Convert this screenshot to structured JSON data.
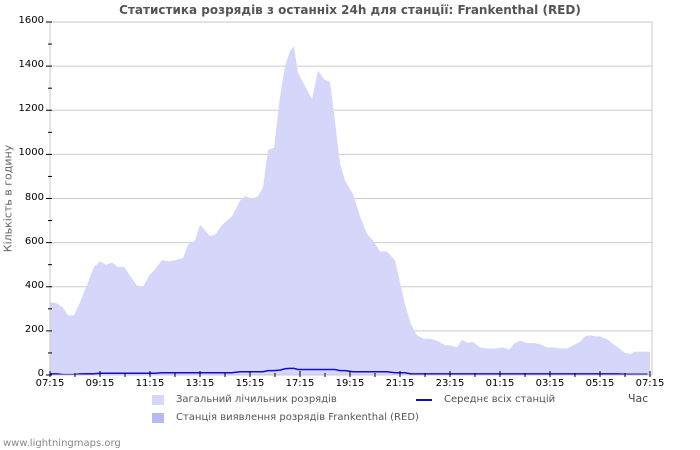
{
  "header": {
    "title": "Статистика розрядів з останніх 24h для станції: Frankenthal (RED)"
  },
  "footer": {
    "site": "www.lightningmaps.org"
  },
  "colors": {
    "total_area": "#d6d6fb",
    "station_area": "#b8b8f6",
    "average_line": "#1010cc",
    "grid": "#cccccc",
    "frame": "#c8c8c8"
  },
  "chart_data": {
    "type": "area",
    "title": "Статистика розрядів з останніх 24h для станції: Frankenthal (RED)",
    "xlabel": "Час",
    "ylabel": "Кількість в годину",
    "ylim": [
      0,
      1600
    ],
    "yticks": [
      0,
      200,
      400,
      600,
      800,
      1000,
      1200,
      1400,
      1600
    ],
    "xticks": [
      "07:15",
      "09:15",
      "11:15",
      "13:15",
      "15:15",
      "17:15",
      "19:15",
      "21:15",
      "23:15",
      "01:15",
      "03:15",
      "05:15",
      "07:15"
    ],
    "grid": true,
    "legend_position": "bottom",
    "legend": [
      {
        "label": "Загальний лічильник розрядів",
        "kind": "area"
      },
      {
        "label": "Станція виявлення розрядів Frankenthal (RED)",
        "kind": "area"
      },
      {
        "label": "Середнє всіх станцій",
        "kind": "line"
      }
    ],
    "x_hours_from_start": [
      0,
      0.28,
      0.52,
      0.72,
      0.96,
      1.2,
      1.52,
      1.76,
      2.0,
      2.24,
      2.48,
      2.72,
      2.96,
      3.2,
      3.48,
      3.72,
      3.96,
      4.2,
      4.48,
      4.8,
      5.12,
      5.32,
      5.52,
      5.8,
      6.0,
      6.2,
      6.4,
      6.6,
      6.88,
      7.28,
      7.6,
      7.8,
      8.08,
      8.32,
      8.52,
      8.72,
      8.96,
      9.2,
      9.4,
      9.6,
      9.76,
      9.92,
      10.2,
      10.48,
      10.72,
      10.96,
      11.2,
      11.4,
      11.6,
      11.8,
      12.12,
      12.4,
      12.68,
      12.92,
      13.2,
      13.48,
      13.8,
      14.0,
      14.2,
      14.44,
      14.68,
      14.92,
      15.2,
      15.48,
      15.8,
      16.0,
      16.28,
      16.48,
      16.72,
      16.92,
      17.2,
      17.48,
      17.8,
      18.12,
      18.36,
      18.6,
      18.8,
      19.08,
      19.32,
      19.6,
      19.88,
      20.12,
      20.4,
      20.68,
      20.92,
      21.2,
      21.4,
      21.6,
      21.8,
      22.0,
      22.32,
      22.52,
      22.72,
      23.0,
      23.2,
      23.4,
      23.6,
      23.8
    ],
    "series": [
      {
        "name": "Загальний лічильник розрядів",
        "values": [
          330,
          325,
          305,
          270,
          270,
          330,
          420,
          490,
          515,
          500,
          510,
          490,
          490,
          450,
          405,
          400,
          450,
          480,
          520,
          515,
          525,
          530,
          590,
          610,
          680,
          655,
          630,
          635,
          680,
          720,
          790,
          810,
          800,
          810,
          850,
          1020,
          1030,
          1260,
          1400,
          1470,
          1490,
          1370,
          1310,
          1250,
          1380,
          1340,
          1330,
          1150,
          960,
          880,
          820,
          720,
          640,
          610,
          560,
          560,
          520,
          420,
          320,
          230,
          180,
          165,
          165,
          155,
          135,
          135,
          125,
          160,
          145,
          150,
          125,
          120,
          120,
          125,
          115,
          145,
          155,
          145,
          145,
          140,
          125,
          125,
          120,
          120,
          135,
          150,
          175,
          180,
          175,
          175,
          160,
          140,
          125,
          100,
          95,
          105,
          105,
          105
        ]
      },
      {
        "name": "Станція виявлення розрядів Frankenthal (RED)",
        "values": [
          0,
          0,
          0,
          0,
          0,
          0,
          0,
          0,
          0,
          0,
          0,
          0,
          0,
          0,
          0,
          0,
          0,
          0,
          0,
          0,
          0,
          0,
          0,
          0,
          0,
          0,
          0,
          0,
          0,
          0,
          0,
          0,
          0,
          0,
          0,
          0,
          0,
          0,
          0,
          0,
          0,
          0,
          0,
          0,
          0,
          0,
          0,
          0,
          0,
          0,
          0,
          0,
          0,
          0,
          0,
          0,
          0,
          0,
          0,
          0,
          0,
          0,
          0,
          0,
          0,
          0,
          0,
          0,
          0,
          0,
          0,
          0,
          0,
          0,
          0,
          0,
          0,
          0,
          0,
          0,
          0,
          0,
          0,
          0,
          0,
          0,
          0,
          0,
          0,
          0,
          0,
          0,
          0,
          0,
          0,
          0,
          0,
          0
        ]
      },
      {
        "name": "Середнє всіх станцій",
        "values": [
          5,
          5,
          2,
          2,
          2,
          5,
          6,
          6,
          8,
          8,
          8,
          8,
          8,
          8,
          8,
          8,
          8,
          8,
          10,
          10,
          10,
          10,
          10,
          10,
          10,
          10,
          10,
          10,
          10,
          10,
          15,
          15,
          15,
          15,
          15,
          20,
          20,
          22,
          28,
          30,
          30,
          25,
          25,
          25,
          25,
          25,
          25,
          25,
          20,
          20,
          15,
          15,
          15,
          15,
          15,
          15,
          10,
          10,
          10,
          5,
          5,
          5,
          5,
          5,
          5,
          5,
          5,
          5,
          5,
          5,
          5,
          5,
          5,
          5,
          5,
          5,
          5,
          5,
          5,
          5,
          5,
          5,
          5,
          5,
          5,
          5,
          5,
          5,
          5,
          5,
          5,
          5,
          5,
          3,
          3,
          3,
          3,
          3
        ]
      }
    ]
  }
}
